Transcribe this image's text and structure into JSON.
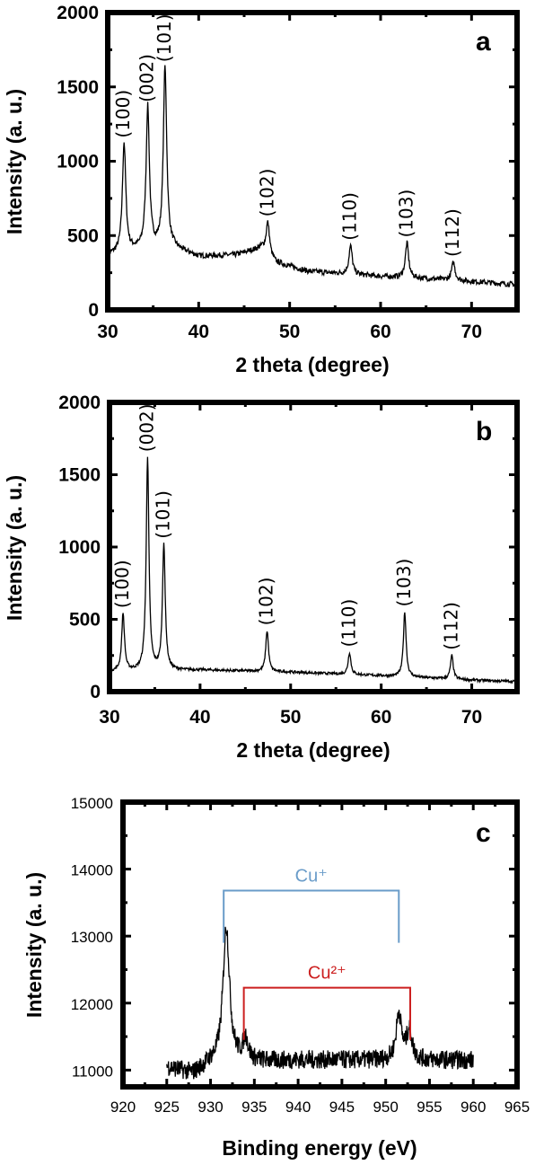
{
  "chart_data": [
    {
      "type": "line",
      "panel_label": "a",
      "xlabel": "2 theta (degree)",
      "ylabel": "Intensity (a. u.)",
      "xlim": [
        30,
        75
      ],
      "ylim": [
        0,
        2000
      ],
      "x_ticks": [
        30,
        40,
        50,
        60,
        70
      ],
      "y_ticks": [
        0,
        500,
        1000,
        1500,
        2000
      ],
      "baseline": [
        [
          30,
          370
        ],
        [
          33,
          400
        ],
        [
          37,
          420
        ],
        [
          40,
          360
        ],
        [
          44,
          370
        ],
        [
          47,
          420
        ],
        [
          48.5,
          320
        ],
        [
          52,
          260
        ],
        [
          60,
          225
        ],
        [
          68,
          200
        ],
        [
          75,
          170
        ]
      ],
      "peaks": [
        {
          "label": "(100)",
          "x": 31.8,
          "y": 1120
        },
        {
          "label": "(002)",
          "x": 34.4,
          "y": 1360
        },
        {
          "label": "(101)",
          "x": 36.3,
          "y": 1630
        },
        {
          "label": "(102)",
          "x": 47.6,
          "y": 590
        },
        {
          "label": "(110)",
          "x": 56.7,
          "y": 430
        },
        {
          "label": "(103)",
          "x": 62.9,
          "y": 450
        },
        {
          "label": "(112)",
          "x": 68.0,
          "y": 320
        }
      ]
    },
    {
      "type": "line",
      "panel_label": "b",
      "xlabel": "2 theta (degree)",
      "ylabel": "Intensity (a. u.)",
      "xlim": [
        30,
        75
      ],
      "ylim": [
        0,
        2000
      ],
      "x_ticks": [
        30,
        40,
        50,
        60,
        70
      ],
      "y_ticks": [
        0,
        500,
        1000,
        1500,
        2000
      ],
      "baseline": [
        [
          30,
          140
        ],
        [
          40,
          150
        ],
        [
          50,
          135
        ],
        [
          60,
          110
        ],
        [
          70,
          80
        ],
        [
          75,
          70
        ]
      ],
      "peaks": [
        {
          "label": "(100)",
          "x": 31.5,
          "y": 540
        },
        {
          "label": "(002)",
          "x": 34.2,
          "y": 1620
        },
        {
          "label": "(101)",
          "x": 36.0,
          "y": 1020
        },
        {
          "label": "(102)",
          "x": 47.4,
          "y": 420
        },
        {
          "label": "(110)",
          "x": 56.5,
          "y": 270
        },
        {
          "label": "(103)",
          "x": 62.6,
          "y": 550
        },
        {
          "label": "(112)",
          "x": 67.8,
          "y": 250
        }
      ]
    },
    {
      "type": "line",
      "panel_label": "c",
      "xlabel": "Binding energy (eV)",
      "ylabel": "Intensity (a. u.)",
      "xlim": [
        920,
        965
      ],
      "ylim": [
        10750,
        15000
      ],
      "x_ticks": [
        920,
        925,
        930,
        935,
        940,
        945,
        950,
        955,
        960,
        965
      ],
      "y_ticks": [
        11000,
        12000,
        13000,
        14000,
        15000
      ],
      "baseline": [
        [
          925,
          11050
        ],
        [
          928,
          10950
        ],
        [
          930,
          11100
        ],
        [
          940,
          11150
        ],
        [
          950,
          11150
        ],
        [
          955,
          11150
        ],
        [
          960,
          11150
        ]
      ],
      "peaks": [
        {
          "x": 931.8,
          "y": 13150
        },
        {
          "x": 934.0,
          "y": 11450
        },
        {
          "x": 951.5,
          "y": 11850
        },
        {
          "x": 952.7,
          "y": 11600
        }
      ],
      "annotations": [
        {
          "label": "Cu⁺",
          "x1": 931.5,
          "x2": 951.5,
          "y": 13680,
          "y_end": 12900,
          "color": "#6a9cc9"
        },
        {
          "label": "Cu²⁺",
          "x1": 933.8,
          "x2": 952.8,
          "y": 12230,
          "y_end": 11450,
          "color": "#cc1f1f"
        }
      ]
    }
  ]
}
